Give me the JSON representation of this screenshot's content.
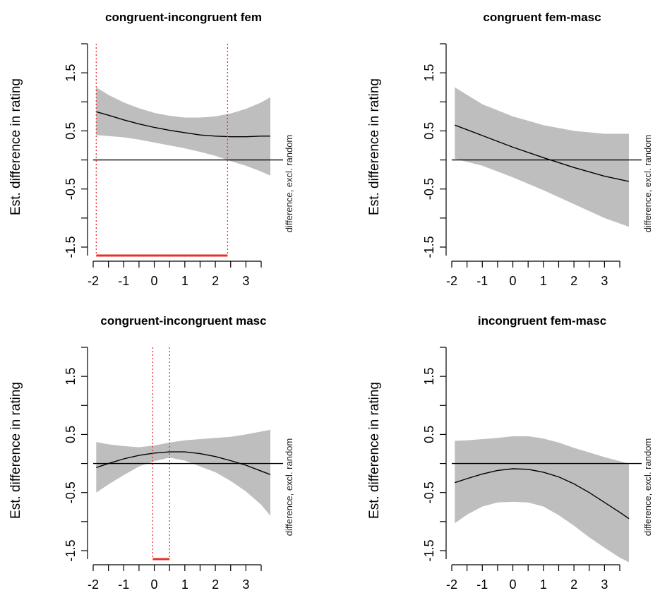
{
  "chart_data": [
    {
      "type": "line",
      "title": "congruent-incongruent fem",
      "ylabel": "Est. difference in rating",
      "side_label": "difference, excl. random",
      "xlim": [
        -2,
        3.8
      ],
      "ylim": [
        -1.5,
        2.0
      ],
      "xticks": [
        -2,
        -1,
        0,
        1,
        2,
        3
      ],
      "xtick_labels": [
        "-2",
        "-1",
        "0",
        "1",
        "2",
        "3"
      ],
      "yticks": [
        -1.5,
        -0.5,
        0.5,
        1.5
      ],
      "ytick_labels": [
        "-1.5",
        "-0.5",
        "0.5",
        "1.5"
      ],
      "x": [
        -1.9,
        -1.5,
        -1.0,
        -0.5,
        0.0,
        0.5,
        1.0,
        1.5,
        2.0,
        2.5,
        3.0,
        3.5,
        3.8
      ],
      "estimate": [
        0.83,
        0.77,
        0.69,
        0.62,
        0.56,
        0.51,
        0.47,
        0.43,
        0.41,
        0.4,
        0.4,
        0.41,
        0.41
      ],
      "ci_lower": [
        0.43,
        0.41,
        0.39,
        0.35,
        0.3,
        0.25,
        0.2,
        0.14,
        0.07,
        -0.02,
        -0.1,
        -0.2,
        -0.27
      ],
      "ci_upper": [
        1.25,
        1.12,
        0.99,
        0.89,
        0.81,
        0.76,
        0.73,
        0.73,
        0.75,
        0.8,
        0.88,
        0.99,
        1.08
      ],
      "zero_line": 0,
      "significance_bounds": [
        -1.9,
        2.4
      ]
    },
    {
      "type": "line",
      "title": "congruent fem-masc",
      "ylabel": "Est. difference in rating",
      "side_label": "difference, excl. random",
      "xlim": [
        -2,
        3.8
      ],
      "ylim": [
        -1.5,
        2.0
      ],
      "xticks": [
        -2,
        -1,
        0,
        1,
        2,
        3
      ],
      "xtick_labels": [
        "-2",
        "-1",
        "0",
        "1",
        "2",
        "3"
      ],
      "yticks": [
        -1.5,
        -0.5,
        0.5,
        1.5
      ],
      "ytick_labels": [
        "-1.5",
        "-0.5",
        "0.5",
        "1.5"
      ],
      "x": [
        -1.9,
        -1.0,
        0.0,
        1.0,
        2.0,
        3.0,
        3.8
      ],
      "estimate": [
        0.6,
        0.42,
        0.22,
        0.04,
        -0.13,
        -0.28,
        -0.37
      ],
      "ci_lower": [
        0.02,
        -0.1,
        -0.3,
        -0.52,
        -0.76,
        -1.0,
        -1.15
      ],
      "ci_upper": [
        1.25,
        0.96,
        0.75,
        0.6,
        0.5,
        0.45,
        0.45
      ],
      "zero_line": 0,
      "significance_bounds": []
    },
    {
      "type": "line",
      "title": "congruent-incongruent masc",
      "ylabel": "Est. difference in rating",
      "side_label": "difference, excl. random",
      "xlim": [
        -2,
        3.8
      ],
      "ylim": [
        -1.5,
        2.0
      ],
      "xticks": [
        -2,
        -1,
        0,
        1,
        2,
        3
      ],
      "xtick_labels": [
        "-2",
        "-1",
        "0",
        "1",
        "2",
        "3"
      ],
      "yticks": [
        -1.5,
        -0.5,
        0.5,
        1.5
      ],
      "ytick_labels": [
        "-1.5",
        "-0.5",
        "0.5",
        "1.5"
      ],
      "x": [
        -1.9,
        -1.5,
        -1.0,
        -0.5,
        0.0,
        0.5,
        1.0,
        1.5,
        2.0,
        2.5,
        3.0,
        3.5,
        3.8
      ],
      "estimate": [
        -0.07,
        0.0,
        0.08,
        0.14,
        0.18,
        0.2,
        0.2,
        0.17,
        0.12,
        0.05,
        -0.03,
        -0.13,
        -0.19
      ],
      "ci_lower": [
        -0.5,
        -0.36,
        -0.2,
        -0.05,
        0.04,
        0.1,
        0.05,
        -0.05,
        -0.15,
        -0.3,
        -0.48,
        -0.71,
        -0.9
      ],
      "ci_upper": [
        0.37,
        0.33,
        0.3,
        0.28,
        0.31,
        0.36,
        0.4,
        0.42,
        0.44,
        0.46,
        0.5,
        0.55,
        0.58
      ],
      "zero_line": 0,
      "significance_bounds": [
        -0.05,
        0.5
      ]
    },
    {
      "type": "line",
      "title": "incongruent fem-masc",
      "ylabel": "Est. difference in rating",
      "side_label": "difference, excl. random",
      "xlim": [
        -2,
        3.8
      ],
      "ylim": [
        -1.5,
        2.0
      ],
      "xticks": [
        -2,
        -1,
        0,
        1,
        2,
        3
      ],
      "xtick_labels": [
        "-2",
        "-1",
        "0",
        "1",
        "2",
        "3"
      ],
      "yticks": [
        -1.5,
        -0.5,
        0.5,
        1.5
      ],
      "ytick_labels": [
        "-1.5",
        "-0.5",
        "0.5",
        "1.5"
      ],
      "x": [
        -1.9,
        -1.5,
        -1.0,
        -0.5,
        0.0,
        0.5,
        1.0,
        1.5,
        2.0,
        2.5,
        3.0,
        3.5,
        3.8
      ],
      "estimate": [
        -0.33,
        -0.26,
        -0.18,
        -0.12,
        -0.09,
        -0.1,
        -0.15,
        -0.23,
        -0.35,
        -0.5,
        -0.67,
        -0.84,
        -0.95
      ],
      "ci_lower": [
        -1.03,
        -0.88,
        -0.74,
        -0.67,
        -0.66,
        -0.67,
        -0.74,
        -0.89,
        -1.07,
        -1.27,
        -1.45,
        -1.62,
        -1.7
      ],
      "ci_upper": [
        0.39,
        0.4,
        0.42,
        0.44,
        0.47,
        0.47,
        0.43,
        0.36,
        0.27,
        0.19,
        0.11,
        0.04,
        0.0
      ],
      "zero_line": 0,
      "significance_bounds": []
    }
  ],
  "colors": {
    "band": "#bebebe",
    "line": "#000000",
    "axis": "#000000",
    "significance": "#e8302a"
  }
}
